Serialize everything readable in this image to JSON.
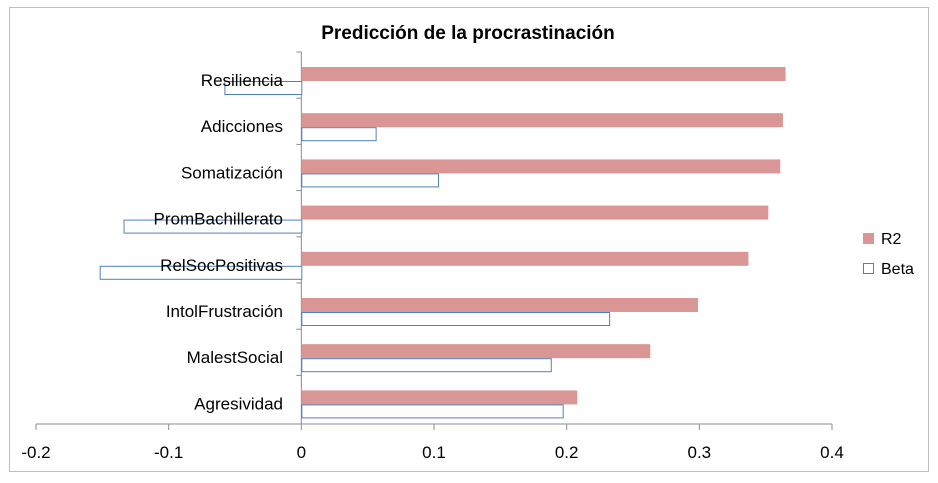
{
  "chart_data": {
    "type": "bar",
    "orientation": "horizontal",
    "title": "Predicción de la procrastinación",
    "categories": [
      "Resiliencia",
      "Adicciones",
      "Somatización",
      "PromBachillerato",
      "RelSocPositivas",
      "IntolFrustración",
      "MalestSocial",
      "Agresividad"
    ],
    "series": [
      {
        "name": "R2",
        "values": [
          0.365,
          0.363,
          0.361,
          0.352,
          0.337,
          0.299,
          0.263,
          0.208
        ],
        "color": "#d99694",
        "fill": "filled"
      },
      {
        "name": "Beta",
        "values": [
          -0.058,
          0.056,
          0.103,
          -0.134,
          -0.152,
          0.232,
          0.188,
          0.197
        ],
        "color": "#4f81bd",
        "fill": "outline"
      }
    ],
    "xlim": [
      -0.2,
      0.4
    ],
    "xticks": [
      "-0.2",
      "-0.1",
      "0",
      "0.1",
      "0.2",
      "0.3",
      "0.4"
    ],
    "grid": false,
    "legend_position": "right"
  }
}
